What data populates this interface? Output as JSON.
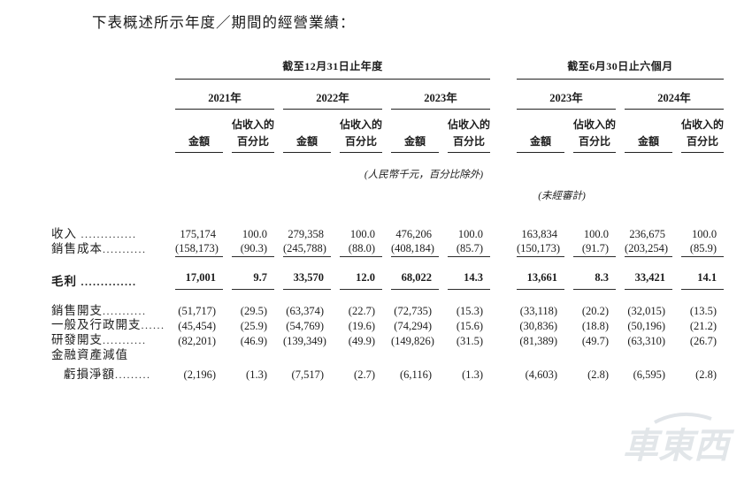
{
  "page": {
    "title": "下表概述所示年度／期間的經營業績："
  },
  "table": {
    "groups": [
      {
        "label": "截至12月31日止年度",
        "years": [
          "2021年",
          "2022年",
          "2023年"
        ]
      },
      {
        "label": "截至6月30日止六個月",
        "years": [
          "2023年",
          "2024年"
        ]
      }
    ],
    "subheaders": {
      "amount": "金額",
      "pct_line1": "佔收入的",
      "pct_line2": "百分比"
    },
    "notes": {
      "units": "(人民幣千元，百分比除外)",
      "unaudited": "(未經審計)"
    },
    "rows": [
      {
        "label": "收入",
        "dots": " ..............",
        "values": [
          "175,174",
          "100.0",
          "279,358",
          "100.0",
          "476,206",
          "100.0",
          "163,834",
          "100.0",
          "236,675",
          "100.0"
        ]
      },
      {
        "label": "銷售成本",
        "dots": "...........",
        "ruled": true,
        "values": [
          "(158,173)",
          "(90.3)",
          "(245,788)",
          "(88.0)",
          "(408,184)",
          "(85.7)",
          "(150,173)",
          "(91.7)",
          "(203,254)",
          "(85.9)"
        ]
      },
      {
        "label": "毛利",
        "dots": " ..............",
        "emphasis": true,
        "ruled": true,
        "spacer_above": true,
        "values": [
          "17,001",
          "9.7",
          "33,570",
          "12.0",
          "68,022",
          "14.3",
          "13,661",
          "8.3",
          "33,421",
          "14.1"
        ]
      },
      {
        "label": "銷售開支",
        "dots": "...........",
        "spacer_above": true,
        "values": [
          "(51,717)",
          "(29.5)",
          "(63,374)",
          "(22.7)",
          "(72,735)",
          "(15.3)",
          "(33,118)",
          "(20.2)",
          "(32,015)",
          "(13.5)"
        ]
      },
      {
        "label": "一般及行政開支",
        "dots": "......",
        "values": [
          "(45,454)",
          "(25.9)",
          "(54,769)",
          "(19.6)",
          "(74,294)",
          "(15.6)",
          "(30,836)",
          "(18.8)",
          "(50,196)",
          "(21.2)"
        ]
      },
      {
        "label": "研發開支",
        "dots": "...........",
        "values": [
          "(82,201)",
          "(46.9)",
          "(139,349)",
          "(49.9)",
          "(149,826)",
          "(31.5)",
          "(81,389)",
          "(49.7)",
          "(63,310)",
          "(26.7)"
        ]
      },
      {
        "label": "金融資產減值",
        "dots": "",
        "section": true,
        "values": []
      },
      {
        "label": "虧損淨額",
        "dots": ".........",
        "indent": true,
        "after_section": true,
        "values": [
          "(2,196)",
          "(1.3)",
          "(7,517)",
          "(2.7)",
          "(6,116)",
          "(1.3)",
          "(4,603)",
          "(2.8)",
          "(6,595)",
          "(2.8)"
        ]
      }
    ]
  },
  "watermark": {
    "text": "車東西"
  }
}
